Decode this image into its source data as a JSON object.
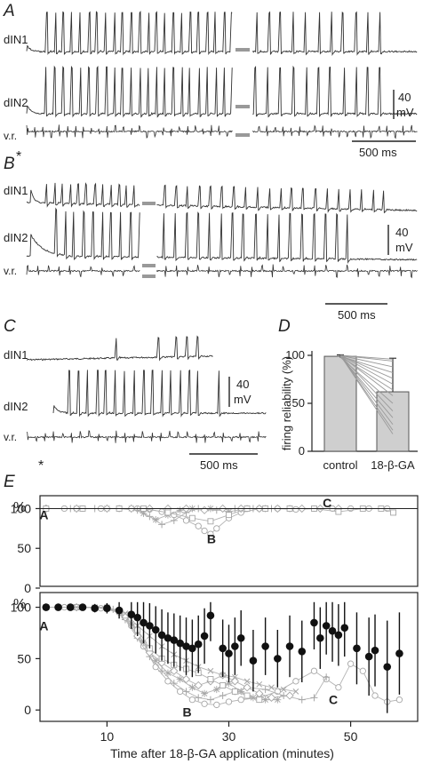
{
  "panels": {
    "A": {
      "letter": "A",
      "cell1": "dIN1",
      "cell2": "dIN2",
      "root": "v.r.",
      "scale_v": "40",
      "scale_v2": "mV",
      "scale_t": "500 ms"
    },
    "B": {
      "letter": "B",
      "cell1": "dIN1",
      "cell2": "dIN2",
      "root": "v.r.",
      "scale_v": "40",
      "scale_v2": "mV",
      "scale_t": "500 ms",
      "asterisk": "*"
    },
    "C": {
      "letter": "C",
      "cell1": "dIN1",
      "cell2": "dIN2",
      "root": "v.r.",
      "scale_v": "40",
      "scale_v2": "mV",
      "scale_t": "500 ms",
      "asterisk": "*"
    }
  },
  "chart_data": [
    {
      "type": "bar",
      "panel": "D",
      "categories": [
        "control",
        "18-β-GA"
      ],
      "values": [
        99,
        62
      ],
      "errors": [
        1.5,
        35
      ],
      "ylabel": "firing reliability (%)",
      "ylim": [
        0,
        100
      ],
      "yticks": [
        "0",
        "50",
        "100"
      ],
      "paired_lines": [
        [
          100,
          18
        ],
        [
          100,
          22
        ],
        [
          100,
          28
        ],
        [
          99,
          35
        ],
        [
          100,
          42
        ],
        [
          98,
          50
        ],
        [
          100,
          58
        ],
        [
          99,
          64
        ],
        [
          100,
          70
        ],
        [
          100,
          76
        ],
        [
          99,
          82
        ],
        [
          100,
          88
        ],
        [
          100,
          94
        ],
        [
          100,
          96
        ]
      ]
    },
    {
      "type": "scatter",
      "panel": "E-top",
      "ylabel": "%",
      "yticks": [
        "0",
        "50",
        "100"
      ],
      "ylim": [
        0,
        105
      ],
      "xlim": [
        -1,
        61
      ],
      "annotations": [
        {
          "text": "A",
          "x": -0.5,
          "y": 92
        },
        {
          "text": "B",
          "x": 27,
          "y": 62
        },
        {
          "text": "C",
          "x": 46,
          "y": 107
        }
      ],
      "series": [
        {
          "values": [
            [
              0,
              100
            ],
            [
              3,
              100
            ],
            [
              6,
              100
            ],
            [
              9,
              100
            ],
            [
              12,
              100
            ],
            [
              15,
              100
            ],
            [
              17,
              99
            ],
            [
              19,
              96
            ],
            [
              21,
              92
            ],
            [
              23,
              85
            ],
            [
              25,
              78
            ],
            [
              26,
              72
            ],
            [
              27,
              68
            ],
            [
              28,
              75
            ],
            [
              30,
              88
            ],
            [
              32,
              95
            ],
            [
              35,
              100
            ],
            [
              38,
              100
            ],
            [
              41,
              99
            ],
            [
              44,
              100
            ],
            [
              47,
              100
            ],
            [
              50,
              100
            ],
            [
              53,
              100
            ],
            [
              56,
              100
            ]
          ]
        },
        {
          "values": [
            [
              0,
              100
            ],
            [
              4,
              100
            ],
            [
              8,
              100
            ],
            [
              12,
              100
            ],
            [
              15,
              98
            ],
            [
              17,
              90
            ],
            [
              19,
              80
            ],
            [
              21,
              85
            ],
            [
              23,
              95
            ],
            [
              25,
              100
            ],
            [
              28,
              98
            ],
            [
              31,
              100
            ],
            [
              34,
              100
            ],
            [
              37,
              100
            ],
            [
              40,
              100
            ]
          ]
        },
        {
          "values": [
            [
              0,
              100
            ],
            [
              5,
              100
            ],
            [
              10,
              100
            ],
            [
              14,
              100
            ],
            [
              16,
              94
            ],
            [
              18,
              86
            ],
            [
              20,
              92
            ],
            [
              22,
              98
            ],
            [
              24,
              100
            ],
            [
              27,
              100
            ],
            [
              30,
              96
            ],
            [
              33,
              100
            ],
            [
              36,
              100
            ]
          ]
        },
        {
          "values": [
            [
              0,
              100
            ],
            [
              5,
              100
            ],
            [
              10,
              100
            ],
            [
              14,
              100
            ],
            [
              17,
              100
            ],
            [
              20,
              100
            ],
            [
              23,
              100
            ],
            [
              26,
              98
            ],
            [
              29,
              100
            ],
            [
              32,
              100
            ],
            [
              35,
              100
            ],
            [
              38,
              100
            ],
            [
              42,
              100
            ],
            [
              45,
              100
            ],
            [
              48,
              100
            ]
          ]
        },
        {
          "values": [
            [
              0,
              100
            ],
            [
              6,
              100
            ],
            [
              12,
              100
            ],
            [
              16,
              100
            ],
            [
              20,
              95
            ],
            [
              24,
              88
            ],
            [
              27,
              84
            ],
            [
              30,
              92
            ],
            [
              33,
              100
            ],
            [
              36,
              100
            ],
            [
              40,
              100
            ],
            [
              44,
              100
            ],
            [
              48,
              96
            ],
            [
              52,
              100
            ],
            [
              55,
              100
            ],
            [
              57,
              95
            ]
          ]
        }
      ]
    },
    {
      "type": "scatter",
      "panel": "E-bottom",
      "xlabel": "Time after 18-β-GA application (minutes)",
      "ylabel": "%",
      "xticks": [
        "10",
        "30",
        "50"
      ],
      "yticks": [
        "0",
        "50",
        "100"
      ],
      "ylim": [
        -5,
        110
      ],
      "xlim": [
        -1,
        61
      ],
      "annotations": [
        {
          "text": "A",
          "x": -0.5,
          "y": 82
        },
        {
          "text": "B",
          "x": 23,
          "y": -2
        },
        {
          "text": "C",
          "x": 47,
          "y": 10
        }
      ],
      "mean": {
        "x": [
          0,
          2,
          4,
          6,
          8,
          10,
          12,
          14,
          15,
          16,
          17,
          18,
          19,
          20,
          21,
          22,
          23,
          24,
          25,
          26,
          27,
          29,
          30,
          31,
          32,
          34,
          36,
          38,
          40,
          42,
          44,
          45,
          46,
          47,
          48,
          49,
          51,
          53,
          54,
          56,
          58
        ],
        "values": [
          100,
          100,
          100,
          100,
          99,
          99,
          97,
          93,
          90,
          85,
          82,
          78,
          73,
          70,
          68,
          65,
          62,
          60,
          64,
          72,
          92,
          60,
          55,
          62,
          70,
          48,
          62,
          50,
          62,
          57,
          85,
          70,
          82,
          77,
          73,
          80,
          60,
          52,
          58,
          42,
          55
        ],
        "errors": [
          2,
          2,
          2,
          3,
          4,
          5,
          8,
          14,
          18,
          20,
          22,
          23,
          25,
          25,
          26,
          27,
          28,
          28,
          28,
          27,
          25,
          28,
          28,
          28,
          27,
          30,
          28,
          28,
          30,
          30,
          26,
          30,
          28,
          30,
          30,
          28,
          35,
          38,
          35,
          45,
          40
        ]
      },
      "series": [
        {
          "values": [
            [
              0,
              100
            ],
            [
              3,
              100
            ],
            [
              6,
              100
            ],
            [
              9,
              99
            ],
            [
              12,
              95
            ],
            [
              14,
              82
            ],
            [
              16,
              62
            ],
            [
              18,
              42
            ],
            [
              20,
              28
            ],
            [
              22,
              18
            ],
            [
              24,
              10
            ],
            [
              26,
              6
            ],
            [
              28,
              5
            ],
            [
              30,
              8
            ],
            [
              32,
              10
            ],
            [
              35,
              12
            ],
            [
              38,
              18
            ],
            [
              41,
              28
            ],
            [
              44,
              38
            ],
            [
              46,
              30
            ],
            [
              48,
              22
            ],
            [
              50,
              45
            ],
            [
              52,
              38
            ],
            [
              54,
              14
            ],
            [
              56,
              8
            ],
            [
              58,
              10
            ]
          ]
        },
        {
          "values": [
            [
              0,
              100
            ],
            [
              4,
              100
            ],
            [
              8,
              100
            ],
            [
              11,
              98
            ],
            [
              13,
              88
            ],
            [
              15,
              70
            ],
            [
              17,
              52
            ],
            [
              19,
              38
            ],
            [
              21,
              26
            ],
            [
              23,
              18
            ],
            [
              25,
              12
            ],
            [
              27,
              10
            ],
            [
              29,
              14
            ],
            [
              31,
              18
            ],
            [
              33,
              22
            ],
            [
              36,
              20
            ],
            [
              39,
              14
            ],
            [
              42,
              10
            ],
            [
              44,
              12
            ],
            [
              46,
              32
            ]
          ]
        },
        {
          "values": [
            [
              0,
              100
            ],
            [
              4,
              100
            ],
            [
              8,
              100
            ],
            [
              12,
              96
            ],
            [
              14,
              84
            ],
            [
              16,
              66
            ],
            [
              18,
              48
            ],
            [
              20,
              36
            ],
            [
              22,
              30
            ],
            [
              24,
              22
            ],
            [
              26,
              16
            ],
            [
              28,
              20
            ],
            [
              30,
              26
            ],
            [
              32,
              18
            ],
            [
              34,
              12
            ],
            [
              36,
              10
            ],
            [
              38,
              10
            ]
          ]
        },
        {
          "values": [
            [
              0,
              100
            ],
            [
              5,
              100
            ],
            [
              10,
              100
            ],
            [
              13,
              90
            ],
            [
              15,
              72
            ],
            [
              17,
              56
            ],
            [
              19,
              46
            ],
            [
              21,
              38
            ],
            [
              23,
              30
            ],
            [
              25,
              24
            ],
            [
              27,
              28
            ],
            [
              29,
              34
            ],
            [
              31,
              28
            ],
            [
              33,
              22
            ],
            [
              35,
              16
            ],
            [
              37,
              12
            ],
            [
              40,
              14
            ]
          ]
        },
        {
          "values": [
            [
              0,
              100
            ],
            [
              5,
              100
            ],
            [
              10,
              99
            ],
            [
              13,
              92
            ],
            [
              15,
              78
            ],
            [
              17,
              60
            ],
            [
              19,
              50
            ],
            [
              21,
              44
            ],
            [
              23,
              40
            ],
            [
              25,
              36
            ],
            [
              27,
              30
            ],
            [
              29,
              24
            ],
            [
              31,
              18
            ],
            [
              33,
              14
            ],
            [
              35,
              10
            ]
          ]
        },
        {
          "values": [
            [
              0,
              100
            ],
            [
              5,
              100
            ],
            [
              10,
              100
            ],
            [
              13,
              94
            ],
            [
              15,
              82
            ],
            [
              17,
              72
            ],
            [
              19,
              62
            ],
            [
              21,
              54
            ],
            [
              23,
              48
            ],
            [
              25,
              42
            ],
            [
              27,
              38
            ],
            [
              29,
              34
            ],
            [
              31,
              32
            ],
            [
              33,
              28
            ],
            [
              35,
              25
            ],
            [
              37,
              22
            ],
            [
              39,
              20
            ],
            [
              41,
              18
            ]
          ]
        }
      ]
    }
  ]
}
